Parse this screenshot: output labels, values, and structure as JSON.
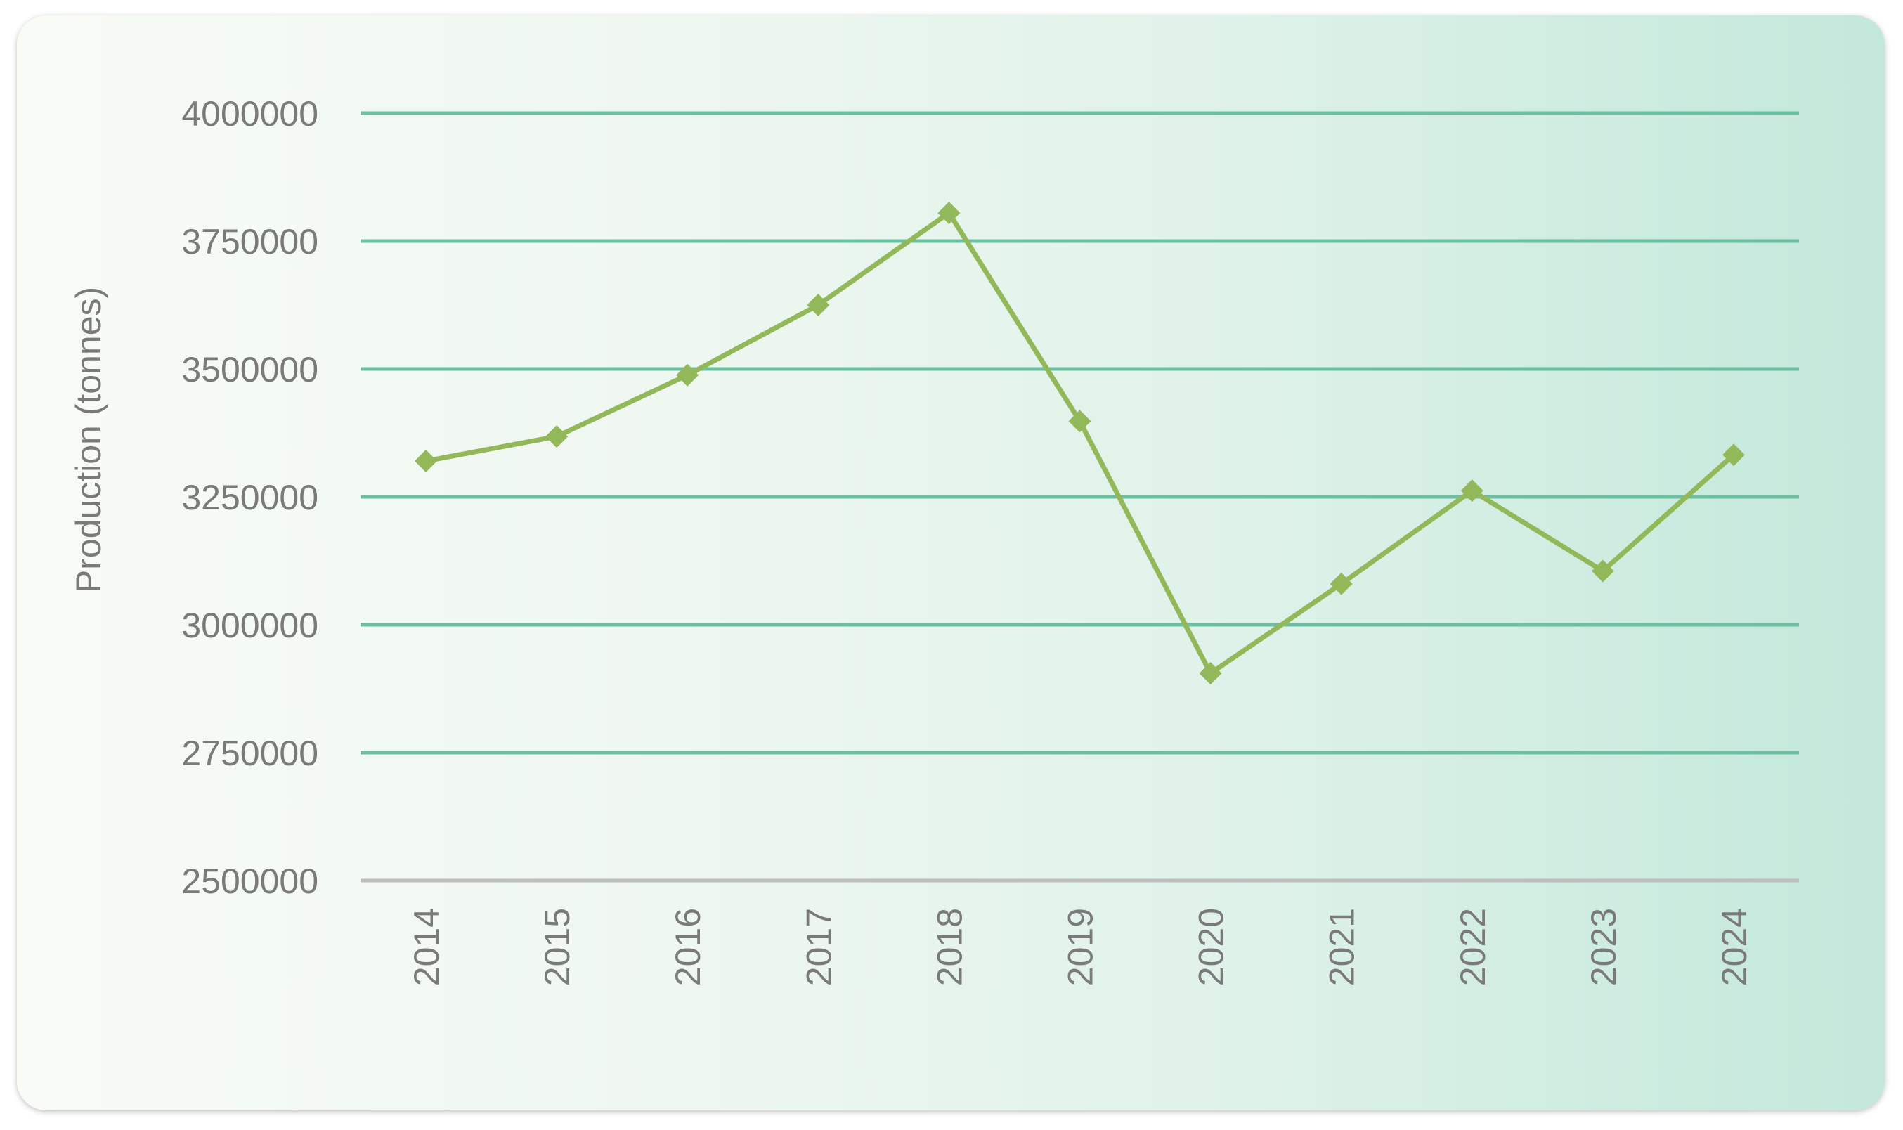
{
  "chart_data": {
    "type": "line",
    "title": "",
    "xlabel": "",
    "ylabel": "Production (tonnes)",
    "ylim": [
      2500000,
      4000000
    ],
    "yticks": [
      "2500000",
      "2750000",
      "3000000",
      "3250000",
      "3500000",
      "3750000",
      "4000000"
    ],
    "categories": [
      "2014",
      "2015",
      "2016",
      "2017",
      "2018",
      "2019",
      "2020",
      "2021",
      "2022",
      "2023",
      "2024"
    ],
    "series": [
      {
        "values": [
          3320000,
          3368000,
          3488000,
          3625000,
          3805000,
          3398000,
          2905000,
          3080000,
          3262000,
          3105000,
          3332000
        ]
      }
    ],
    "grid": true,
    "legend": "none",
    "colors": {
      "line": "#93b85a",
      "grid": "#6cbfa0",
      "axis": "#bdbdbd",
      "text": "#7a7a7a"
    }
  }
}
